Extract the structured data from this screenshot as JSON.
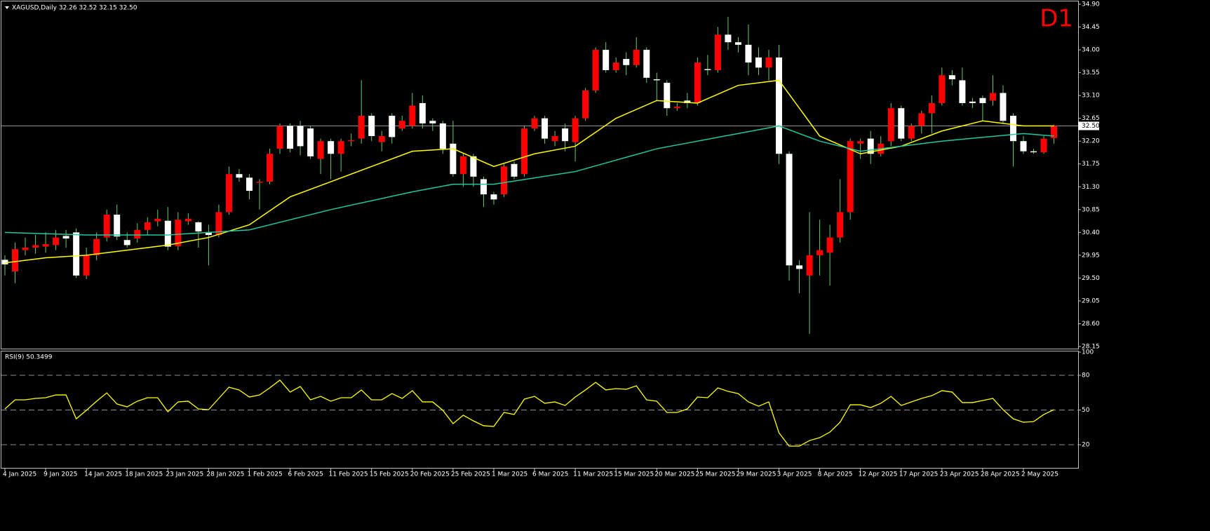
{
  "chart_data": [
    {
      "type": "candlestick",
      "legend_text": "XAGUSD,Daily 32.26 32.52 32.15 32.50",
      "timeframe_label": "D1",
      "up_color": "#ff0000",
      "down_color": "#ffffff",
      "wick_color": "#66cc66",
      "categories": [
        "4 Jan 2025",
        null,
        null,
        null,
        "9 Jan 2025",
        null,
        null,
        null,
        "14 Jan 2025",
        null,
        null,
        null,
        "18 Jan 2025",
        null,
        null,
        null,
        "23 Jan 2025",
        null,
        null,
        null,
        "28 Jan 2025",
        null,
        null,
        null,
        "1 Feb 2025",
        null,
        null,
        null,
        "6 Feb 2025",
        null,
        null,
        null,
        "11 Feb 2025",
        null,
        null,
        null,
        "15 Feb 2025",
        null,
        null,
        null,
        "20 Feb 2025",
        null,
        null,
        null,
        "25 Feb 2025",
        null,
        null,
        null,
        "1 Mar 2025",
        null,
        null,
        null,
        "6 Mar 2025",
        null,
        null,
        null,
        "11 Mar 2025",
        null,
        null,
        null,
        "15 Mar 2025",
        null,
        null,
        null,
        "20 Mar 2025",
        null,
        null,
        null,
        "25 Mar 2025",
        null,
        null,
        null,
        "29 Mar 2025",
        null,
        null,
        null,
        "3 Apr 2025",
        null,
        null,
        null,
        "8 Apr 2025",
        null,
        null,
        null,
        "12 Apr 2025",
        null,
        null,
        null,
        "17 Apr 2025",
        null,
        null,
        null,
        "23 Apr 2025",
        null,
        null,
        null,
        "28 Apr 2025",
        null,
        null,
        null,
        "2 May 2025",
        null,
        null,
        null
      ],
      "open": [
        29.86,
        29.63,
        30.05,
        30.1,
        30.12,
        30.15,
        30.33,
        30.4,
        29.55,
        29.95,
        30.3,
        30.75,
        30.25,
        30.28,
        30.45,
        30.62,
        30.63,
        30.13,
        30.62,
        30.6,
        30.4,
        30.35,
        30.8,
        31.55,
        31.48,
        31.38,
        31.4,
        32.05,
        32.5,
        32.5,
        32.45,
        31.85,
        32.2,
        31.95,
        32.2,
        32.25,
        32.7,
        32.18,
        32.7,
        32.45,
        32.5,
        32.95,
        32.6,
        32.55,
        32.15,
        31.55,
        31.9,
        31.45,
        31.15,
        31.15,
        31.75,
        31.55,
        32.45,
        32.65,
        32.2,
        32.45,
        32.18,
        32.65,
        33.2,
        34.0,
        33.6,
        33.82,
        33.7,
        34.0,
        33.42,
        33.35,
        32.85,
        33.0,
        32.95,
        33.62,
        33.6,
        34.3,
        34.15,
        34.1,
        33.85,
        33.65,
        33.85,
        31.95,
        29.75,
        29.55,
        29.95,
        30.0,
        30.3,
        30.8,
        32.15,
        32.25,
        31.95,
        32.2,
        32.85,
        32.25,
        32.5,
        32.75,
        32.95,
        33.5,
        33.4,
        32.98,
        33.05,
        33.0,
        33.15,
        32.7,
        32.2,
        32.0,
        31.98,
        32.26
      ],
      "high": [
        29.95,
        30.2,
        30.3,
        30.35,
        30.4,
        30.45,
        30.45,
        30.48,
        30.1,
        30.4,
        30.85,
        30.95,
        30.4,
        30.58,
        30.7,
        30.85,
        30.9,
        30.8,
        30.78,
        30.62,
        30.55,
        30.95,
        31.7,
        31.65,
        31.55,
        31.45,
        32.05,
        32.55,
        32.55,
        32.6,
        32.5,
        32.25,
        32.25,
        32.25,
        32.35,
        33.4,
        32.75,
        32.4,
        32.75,
        32.7,
        33.15,
        33.1,
        32.65,
        32.6,
        32.6,
        31.95,
        31.95,
        31.5,
        31.2,
        31.75,
        31.8,
        32.5,
        32.7,
        32.7,
        32.4,
        32.55,
        32.7,
        33.25,
        34.05,
        34.15,
        33.85,
        33.95,
        34.25,
        34.05,
        33.55,
        33.4,
        32.95,
        33.15,
        33.85,
        33.9,
        34.45,
        34.65,
        34.25,
        34.5,
        34.05,
        34.0,
        34.1,
        32.0,
        29.85,
        30.8,
        30.65,
        30.55,
        31.45,
        32.25,
        32.25,
        32.4,
        32.3,
        32.95,
        32.9,
        32.55,
        32.8,
        33.1,
        33.65,
        33.6,
        33.65,
        33.05,
        33.1,
        33.5,
        33.3,
        32.75,
        32.3,
        32.05,
        32.3,
        32.52
      ],
      "low": [
        29.55,
        29.4,
        29.95,
        29.98,
        30.0,
        30.05,
        30.1,
        29.5,
        29.48,
        29.85,
        30.22,
        30.25,
        30.1,
        30.2,
        30.35,
        30.52,
        30.05,
        30.05,
        30.55,
        30.1,
        29.75,
        30.3,
        30.75,
        31.4,
        31.05,
        30.85,
        31.35,
        31.95,
        31.98,
        31.92,
        31.85,
        31.55,
        31.45,
        31.6,
        32.1,
        32.15,
        32.2,
        32.0,
        32.15,
        32.4,
        32.45,
        32.45,
        32.4,
        31.95,
        31.5,
        31.3,
        31.3,
        30.9,
        30.95,
        31.1,
        31.45,
        31.5,
        32.4,
        32.15,
        32.1,
        32.0,
        31.8,
        32.6,
        33.15,
        33.55,
        33.55,
        33.5,
        33.65,
        33.35,
        33.0,
        32.7,
        32.8,
        32.85,
        32.9,
        33.5,
        33.55,
        34.0,
        33.95,
        33.5,
        33.5,
        33.4,
        31.75,
        29.45,
        29.2,
        28.4,
        29.55,
        29.35,
        30.2,
        30.65,
        31.85,
        31.75,
        31.9,
        32.1,
        32.2,
        32.2,
        32.35,
        32.35,
        32.9,
        33.3,
        32.9,
        32.85,
        32.6,
        32.9,
        32.55,
        31.7,
        31.95,
        31.95,
        31.95,
        32.15
      ],
      "close": [
        29.77,
        30.07,
        30.1,
        30.15,
        30.17,
        30.3,
        30.28,
        29.55,
        29.95,
        30.27,
        30.75,
        30.32,
        30.15,
        30.45,
        30.6,
        30.67,
        30.12,
        30.65,
        30.67,
        30.42,
        30.35,
        30.8,
        31.55,
        31.48,
        31.22,
        31.4,
        31.95,
        32.5,
        32.05,
        32.1,
        31.9,
        32.2,
        31.95,
        32.2,
        32.22,
        32.7,
        32.3,
        32.3,
        32.28,
        32.6,
        32.9,
        32.55,
        32.55,
        32.05,
        31.55,
        31.9,
        31.5,
        31.15,
        31.05,
        31.7,
        31.5,
        32.45,
        32.65,
        32.25,
        32.3,
        32.2,
        32.65,
        33.2,
        34.0,
        33.6,
        33.75,
        33.7,
        34.0,
        33.45,
        33.4,
        32.85,
        32.88,
        32.95,
        33.75,
        33.6,
        34.3,
        34.15,
        34.1,
        33.75,
        33.65,
        33.85,
        31.95,
        29.75,
        29.68,
        29.95,
        30.05,
        30.3,
        30.8,
        32.2,
        32.2,
        31.95,
        32.15,
        32.85,
        32.25,
        32.5,
        32.75,
        32.95,
        33.5,
        33.42,
        32.95,
        32.95,
        32.95,
        33.15,
        32.6,
        32.2,
        32.0,
        31.98,
        32.25,
        32.5
      ],
      "overlays": [
        {
          "color": "#ffff00",
          "x": [
            0,
            4,
            8,
            12,
            16,
            20,
            24,
            28,
            32,
            36,
            40,
            44,
            48,
            52,
            56,
            60,
            64,
            68,
            72,
            76,
            80,
            84,
            88,
            92,
            96,
            100,
            103
          ],
          "values": [
            29.8,
            29.9,
            29.95,
            30.05,
            30.15,
            30.3,
            30.55,
            31.1,
            31.4,
            31.7,
            32.0,
            32.05,
            31.7,
            31.95,
            32.1,
            32.65,
            33.0,
            32.95,
            33.3,
            33.4,
            32.3,
            31.95,
            32.1,
            32.4,
            32.6,
            32.5,
            32.5
          ]
        },
        {
          "color": "#20c8a0",
          "x": [
            0,
            8,
            16,
            24,
            32,
            40,
            44,
            48,
            56,
            64,
            72,
            76,
            80,
            84,
            92,
            100,
            103
          ],
          "values": [
            30.4,
            30.35,
            30.35,
            30.45,
            30.85,
            31.2,
            31.35,
            31.35,
            31.6,
            32.05,
            32.35,
            32.5,
            32.2,
            32.0,
            32.2,
            32.35,
            32.3
          ]
        }
      ],
      "current_price": {
        "value": 32.5,
        "label": "32.50"
      },
      "ylim": [
        28.15,
        34.9
      ],
      "yticks": [
        {
          "value": 34.9,
          "label": "34.90"
        },
        34.45,
        {
          "value": 34.0,
          "label": "34.00"
        },
        33.55,
        {
          "value": 33.1,
          "label": "33.10"
        },
        32.65,
        {
          "value": 32.2,
          "label": "32.20"
        },
        31.75,
        {
          "value": 31.3,
          "label": "31.30"
        },
        30.85,
        {
          "value": 30.4,
          "label": "30.40"
        },
        29.95,
        {
          "value": 29.5,
          "label": "29.50"
        },
        29.05,
        {
          "value": 28.6,
          "label": "28.60"
        },
        28.15
      ]
    },
    {
      "type": "line",
      "legend_text": "RSI(9) 50.3499",
      "color": "#ffff00",
      "values": [
        50.9,
        58.8,
        58.8,
        60,
        60.6,
        63,
        63,
        42.4,
        49.7,
        57.6,
        64.8,
        55.2,
        52.7,
        57.6,
        60.6,
        60.6,
        48.5,
        57,
        57.6,
        50.9,
        50.3,
        60,
        69.7,
        67.3,
        61.2,
        63,
        69.1,
        75.8,
        65.5,
        70.3,
        58.8,
        61.8,
        57.6,
        60.6,
        60.6,
        67.3,
        58.8,
        58.8,
        64.2,
        60,
        66.7,
        57,
        57,
        49.7,
        38.2,
        45.5,
        40.6,
        36.4,
        35.8,
        47.9,
        46.1,
        59.4,
        61.8,
        55.8,
        57,
        53.9,
        61.2,
        67.3,
        73.9,
        67.3,
        68.5,
        67.9,
        70.9,
        58.8,
        57.6,
        47.9,
        47.9,
        50.9,
        61.2,
        60.6,
        69.1,
        66.1,
        64.2,
        57,
        53.3,
        57,
        30.3,
        18.8,
        18.8,
        23.6,
        26.1,
        30.9,
        39.4,
        54.5,
        54.5,
        52.1,
        55.8,
        61.8,
        53.9,
        57,
        60,
        62.4,
        66.7,
        65.5,
        56.4,
        56.4,
        58.2,
        60,
        50.3,
        42.4,
        39.4,
        40,
        46.1,
        50.35
      ],
      "levels": [
        20,
        50,
        80
      ],
      "ylim": [
        0,
        100
      ],
      "yticks": [
        20,
        50,
        80,
        100
      ]
    }
  ]
}
